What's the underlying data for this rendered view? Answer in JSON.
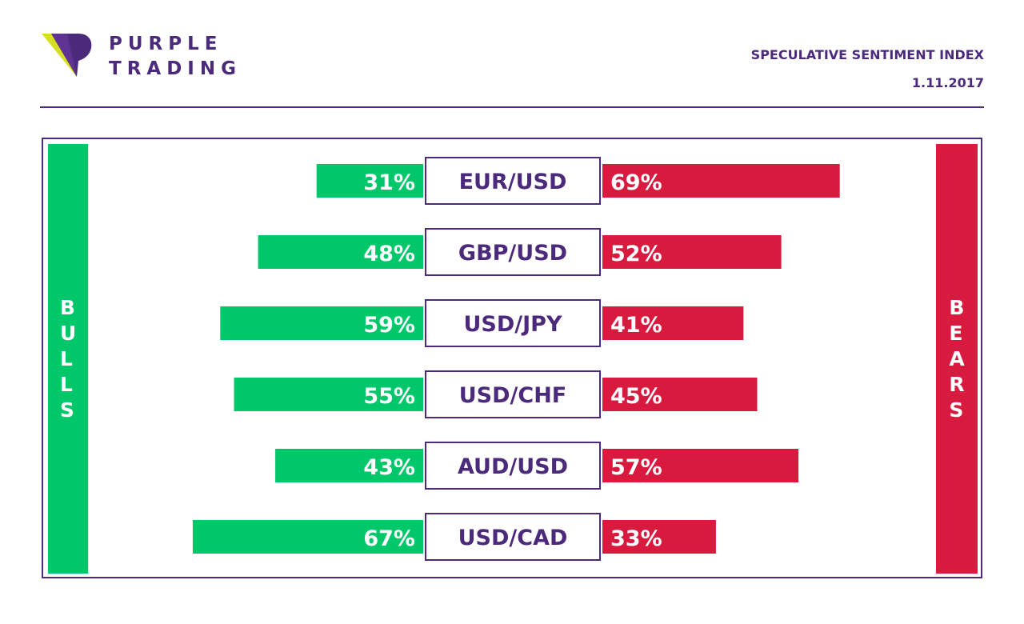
{
  "brand": {
    "line1": "PURPLE",
    "line2": "TRADING",
    "logo_icon": "purple-trading-triangle-logo",
    "colors": {
      "purple": "#4b2a7b",
      "yellow": "#d6e021"
    }
  },
  "header": {
    "title": "SPECULATIVE SENTIMENT INDEX",
    "date": "1.11.2017"
  },
  "sides": {
    "bulls_label": "BULLS",
    "bears_label": "BEARS"
  },
  "colors": {
    "bulls": "#00c76a",
    "bears": "#d71a3e",
    "frame": "#4b2a7b"
  },
  "chart_data": {
    "type": "bar",
    "orientation": "horizontal-diverging",
    "categories": [
      "EUR/USD",
      "GBP/USD",
      "USD/JPY",
      "USD/CHF",
      "AUD/USD",
      "USD/CAD"
    ],
    "series": [
      {
        "name": "BULLS",
        "values": [
          31,
          48,
          59,
          55,
          43,
          67
        ],
        "color": "#00c76a"
      },
      {
        "name": "BEARS",
        "values": [
          69,
          52,
          41,
          45,
          57,
          33
        ],
        "color": "#d71a3e"
      }
    ],
    "unit": "%",
    "xlim": [
      0,
      100
    ]
  }
}
